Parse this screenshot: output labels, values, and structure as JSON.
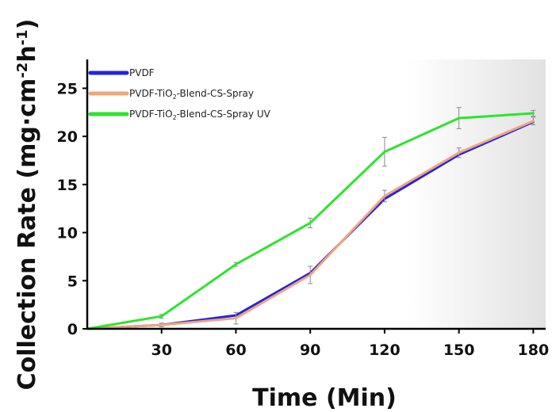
{
  "chart_data": {
    "type": "line",
    "x": [
      0,
      30,
      60,
      90,
      120,
      150,
      180
    ],
    "xticks": [
      30,
      60,
      90,
      120,
      150,
      180
    ],
    "yticks": [
      0,
      5,
      10,
      15,
      20,
      25
    ],
    "xlim": [
      0,
      185
    ],
    "ylim": [
      0,
      28
    ],
    "xlabel": "Time (Min)",
    "ylabel": {
      "base": "Collection Rate (mg·cm",
      "sup1": "-2",
      "mid": "h",
      "sup2": "-1",
      "end": ")"
    },
    "legend_position": "top-left",
    "grid": false,
    "series": [
      {
        "name": "PVDF",
        "label_parts": [
          "PVDF"
        ],
        "color": "#2323e0",
        "values": [
          0,
          0.4,
          1.4,
          5.8,
          13.5,
          18.1,
          21.5
        ],
        "errors": [
          0,
          0,
          0,
          0,
          0,
          0,
          0
        ]
      },
      {
        "name": "PVDF-TiO2-Blend-CS-Spray",
        "label_parts": [
          "PVDF-TiO",
          "2",
          "-Blend-CS-Spray"
        ],
        "color": "#f0a57c",
        "values": [
          0,
          0.4,
          1.1,
          5.6,
          13.8,
          18.3,
          21.6
        ],
        "errors": [
          0,
          0.2,
          0.6,
          0.9,
          0.6,
          0.5,
          0.4
        ]
      },
      {
        "name": "PVDF-TiO2-Blend-CS-Spray UV",
        "label_parts": [
          "PVDF-TiO",
          "2",
          "-Blend-CS-Spray UV"
        ],
        "color": "#2ee32e",
        "values": [
          0,
          1.3,
          6.7,
          11.0,
          18.4,
          21.9,
          22.4
        ],
        "errors": [
          0,
          0.2,
          0.2,
          0.5,
          1.5,
          1.1,
          0.3
        ]
      }
    ]
  }
}
